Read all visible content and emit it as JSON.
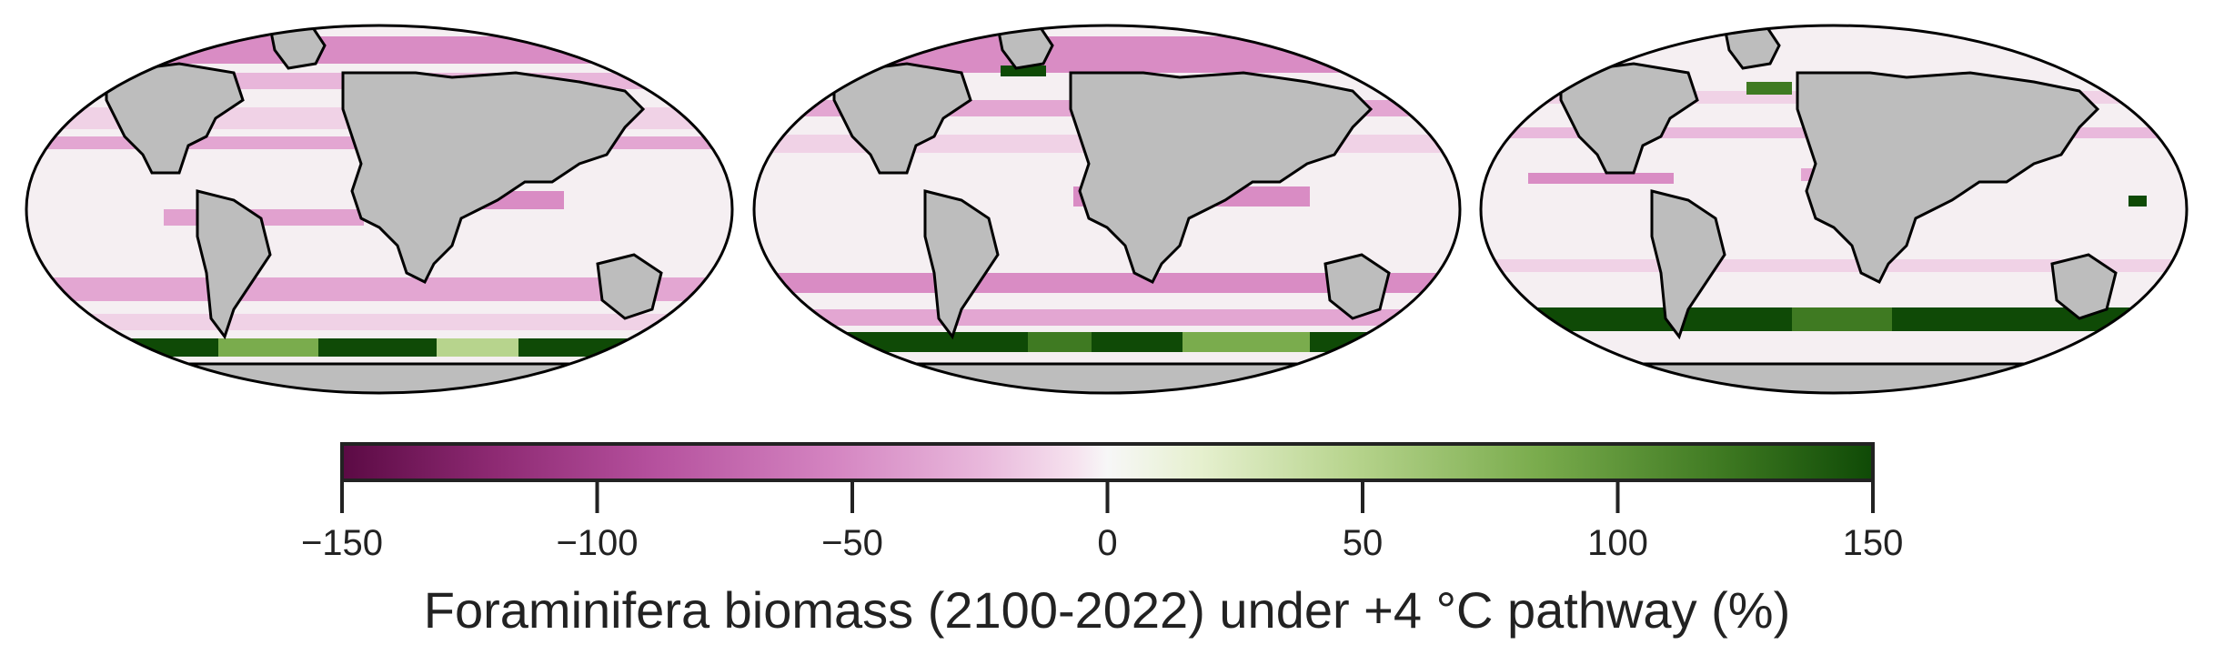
{
  "colors": {
    "land": "#bdbdbd",
    "ocean_neutral": "#f5eff2",
    "outline": "#000000",
    "scale": [
      "#5b0a44",
      "#8e2a73",
      "#b44f9c",
      "#d484c1",
      "#e9b9dc",
      "#f6e3ef",
      "#f7f7f7",
      "#e6f0cf",
      "#b7d48d",
      "#7aac4d",
      "#3f7a22",
      "#0f4a06"
    ]
  },
  "panels": [
    {
      "id": "left"
    },
    {
      "id": "middle"
    },
    {
      "id": "right"
    }
  ],
  "colorbar": {
    "min": -150,
    "max": 150,
    "ticks": [
      "−150",
      "−100",
      "−50",
      "0",
      "50",
      "100",
      "150"
    ],
    "label": "Foraminifera biomass (2100-2022) under +4 °C pathway (%)"
  }
}
